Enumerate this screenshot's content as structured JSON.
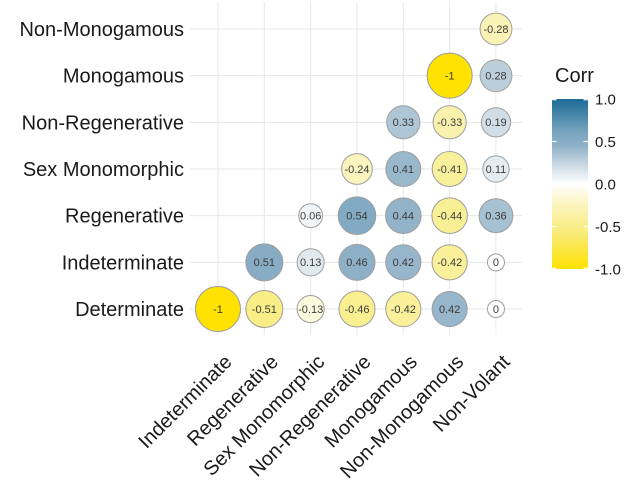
{
  "chart_data": {
    "type": "heatmap",
    "subtype": "correlation-bubble-matrix",
    "title": "",
    "grid": true,
    "rows": [
      "Non-Monogamous",
      "Monogamous",
      "Non-Regenerative",
      "Sex Monomorphic",
      "Regenerative",
      "Indeterminate",
      "Determinate"
    ],
    "columns": [
      "Indeterminate",
      "Regenerative",
      "Sex Monomorphic",
      "Non-Regenerative",
      "Monogamous",
      "Non-Monogamous",
      "Non-Volant"
    ],
    "cells": [
      {
        "row": "Non-Monogamous",
        "col": "Non-Volant",
        "value": -0.28
      },
      {
        "row": "Monogamous",
        "col": "Non-Monogamous",
        "value": -1
      },
      {
        "row": "Monogamous",
        "col": "Non-Volant",
        "value": 0.28
      },
      {
        "row": "Non-Regenerative",
        "col": "Monogamous",
        "value": 0.33
      },
      {
        "row": "Non-Regenerative",
        "col": "Non-Monogamous",
        "value": -0.33
      },
      {
        "row": "Non-Regenerative",
        "col": "Non-Volant",
        "value": 0.19
      },
      {
        "row": "Sex Monomorphic",
        "col": "Non-Regenerative",
        "value": -0.24
      },
      {
        "row": "Sex Monomorphic",
        "col": "Monogamous",
        "value": 0.41
      },
      {
        "row": "Sex Monomorphic",
        "col": "Non-Monogamous",
        "value": -0.41
      },
      {
        "row": "Sex Monomorphic",
        "col": "Non-Volant",
        "value": 0.11
      },
      {
        "row": "Regenerative",
        "col": "Sex Monomorphic",
        "value": 0.06
      },
      {
        "row": "Regenerative",
        "col": "Non-Regenerative",
        "value": 0.54
      },
      {
        "row": "Regenerative",
        "col": "Monogamous",
        "value": 0.44
      },
      {
        "row": "Regenerative",
        "col": "Non-Monogamous",
        "value": -0.44
      },
      {
        "row": "Regenerative",
        "col": "Non-Volant",
        "value": 0.36
      },
      {
        "row": "Indeterminate",
        "col": "Regenerative",
        "value": 0.51
      },
      {
        "row": "Indeterminate",
        "col": "Sex Monomorphic",
        "value": 0.13
      },
      {
        "row": "Indeterminate",
        "col": "Non-Regenerative",
        "value": 0.46
      },
      {
        "row": "Indeterminate",
        "col": "Monogamous",
        "value": 0.42
      },
      {
        "row": "Indeterminate",
        "col": "Non-Monogamous",
        "value": -0.42
      },
      {
        "row": "Indeterminate",
        "col": "Non-Volant",
        "value": 0
      },
      {
        "row": "Determinate",
        "col": "Indeterminate",
        "value": -1
      },
      {
        "row": "Determinate",
        "col": "Regenerative",
        "value": -0.51
      },
      {
        "row": "Determinate",
        "col": "Sex Monomorphic",
        "value": -0.13
      },
      {
        "row": "Determinate",
        "col": "Non-Regenerative",
        "value": -0.46
      },
      {
        "row": "Determinate",
        "col": "Monogamous",
        "value": -0.42
      },
      {
        "row": "Determinate",
        "col": "Non-Monogamous",
        "value": 0.42
      },
      {
        "row": "Determinate",
        "col": "Non-Volant",
        "value": 0
      }
    ],
    "legend": {
      "title": "Corr",
      "position": "right",
      "min": -1,
      "max": 1,
      "ticks": [
        1.0,
        0.5,
        0.0,
        -0.5,
        -1.0
      ],
      "tick_labels": [
        "1.0",
        "0.5",
        "0.0",
        "-0.5",
        "-1.0"
      ]
    },
    "colors": {
      "background": "#ffffff",
      "grid": "#e7e7e7",
      "circle_border": "#9e9e9e",
      "value_text": "#3c3c3c",
      "axis_text": "#1a1a1a",
      "positive_stops": [
        [
          0,
          "#FFFFFF"
        ],
        [
          0.25,
          "#C3D4DF"
        ],
        [
          0.45,
          "#8FB1C7"
        ],
        [
          0.6,
          "#7AA5BF"
        ],
        [
          1,
          "#1C6B96"
        ]
      ],
      "negative_stops": [
        [
          0,
          "#FFFFFF"
        ],
        [
          0.25,
          "#FBF4BC"
        ],
        [
          0.45,
          "#F9EF93"
        ],
        [
          0.6,
          "#F8EA73"
        ],
        [
          1,
          "#FFE200"
        ]
      ]
    }
  }
}
